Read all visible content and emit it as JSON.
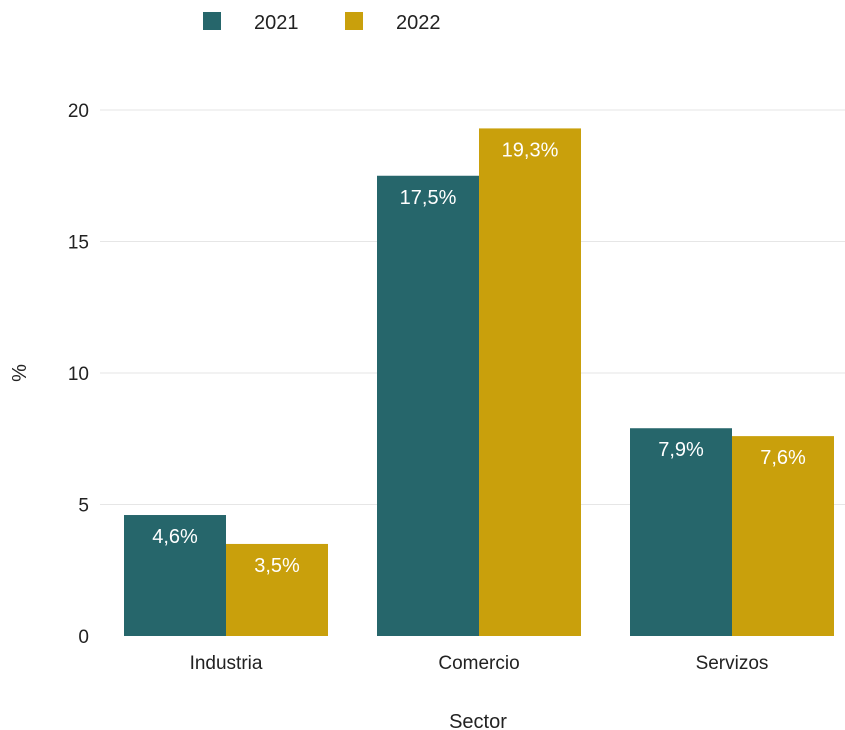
{
  "chart_data": {
    "type": "bar",
    "categories": [
      "Industria",
      "Comercio",
      "Servizos"
    ],
    "series": [
      {
        "name": "2021",
        "color": "#26666b",
        "values": [
          4.6,
          17.5,
          7.9
        ],
        "labels": [
          "4,6%",
          "17,5%",
          "7,9%"
        ]
      },
      {
        "name": "2022",
        "color": "#c9a00c",
        "values": [
          3.5,
          19.3,
          7.6
        ],
        "labels": [
          "3,5%",
          "19,3%",
          "7,6%"
        ]
      }
    ],
    "xlabel": "Sector",
    "ylabel": "%",
    "ylim": [
      0,
      20
    ],
    "yticks": [
      {
        "value": 0,
        "label": "0"
      },
      {
        "value": 5,
        "label": "5"
      },
      {
        "value": 10,
        "label": "10"
      },
      {
        "value": 15,
        "label": "15"
      },
      {
        "value": 20,
        "label": "20"
      }
    ],
    "grid": true,
    "legend_position": "top-left"
  }
}
